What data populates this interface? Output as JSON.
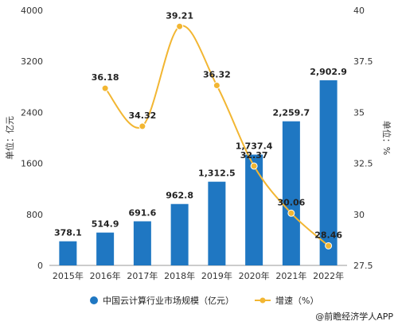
{
  "chart_data": {
    "type": "bar",
    "categories": [
      "2015年",
      "2016年",
      "2017年",
      "2018年",
      "2019年",
      "2020年",
      "2021年",
      "2022年"
    ],
    "series": [
      {
        "name": "中国云计算行业市场规模（亿元）",
        "type": "bar",
        "axis": "left",
        "values": [
          378.1,
          514.9,
          691.6,
          962.8,
          1312.5,
          1737.4,
          2259.7,
          2902.9
        ],
        "labels": [
          "378.1",
          "514.9",
          "691.6",
          "962.8",
          "1,312.5",
          "1,737.4",
          "2,259.7",
          "2,902.9"
        ],
        "color": "#1f77c2"
      },
      {
        "name": "增速（%）",
        "type": "line",
        "axis": "right",
        "values": [
          null,
          36.18,
          34.32,
          39.21,
          36.32,
          32.37,
          30.06,
          28.46
        ],
        "labels": [
          "",
          "36.18",
          "34.32",
          "39.21",
          "36.32",
          "32.37",
          "30.06",
          "28.46"
        ],
        "color": "#f2b632"
      }
    ],
    "ylabel_left": "单位：亿元",
    "ylabel_right": "单位：%",
    "ylim_left": [
      0,
      4000
    ],
    "yticks_left": [
      0,
      800,
      1600,
      2400,
      3200,
      4000
    ],
    "ylim_right": [
      27.5,
      40
    ],
    "yticks_right": [
      "27.5",
      "30",
      "32.5",
      "35",
      "37.5",
      "40"
    ],
    "legend_position": "bottom",
    "grid": false,
    "source": "@前瞻经济学人APP"
  }
}
